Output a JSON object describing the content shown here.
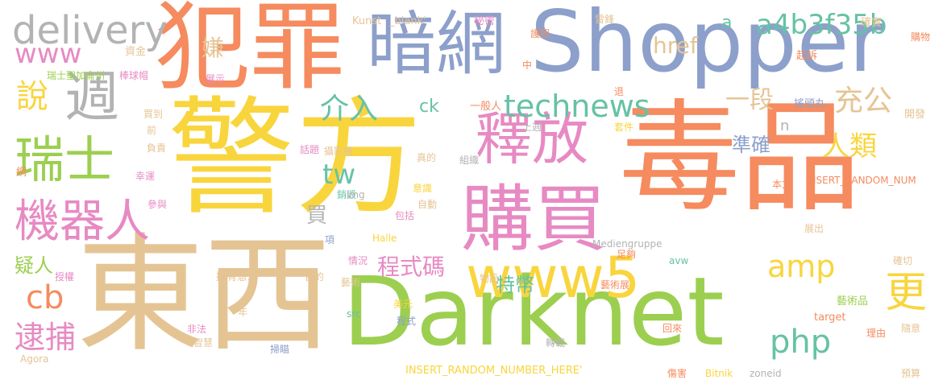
{
  "palette": {
    "orange": "#f58b5f",
    "yellow": "#f9d53d",
    "green": "#9ccf50",
    "blue": "#8da0cb",
    "tan": "#e5c494",
    "pink": "#e78ac3",
    "teal": "#66c2a5",
    "gray": "#b3b3b3"
  },
  "words": [
    {
      "text": "警方",
      "color": "#f9d53d"
    },
    {
      "text": "毒品",
      "color": "#f58b5f"
    },
    {
      "text": "東西",
      "color": "#e5c494"
    },
    {
      "text": "Darknet",
      "color": "#9ccf50"
    },
    {
      "text": "Shopper",
      "color": "#8da0cb"
    },
    {
      "text": "犯罪",
      "color": "#f58b5f"
    },
    {
      "text": "暗網",
      "color": "#8da0cb"
    },
    {
      "text": "購買",
      "color": "#e78ac3"
    },
    {
      "text": "釋放",
      "color": "#e78ac3"
    },
    {
      "text": "瑞士",
      "color": "#9ccf50"
    },
    {
      "text": "機器人",
      "color": "#e78ac3"
    },
    {
      "text": "週",
      "color": "#b3b3b3"
    },
    {
      "text": "delivery",
      "color": "#b3b3b3"
    },
    {
      "text": "www5",
      "color": "#f9d53d"
    },
    {
      "text": "更",
      "color": "#f9d53d"
    },
    {
      "text": "technews",
      "color": "#66c2a5"
    },
    {
      "text": "amp",
      "color": "#f9d53d"
    },
    {
      "text": "php",
      "color": "#66c2a5"
    },
    {
      "text": "www",
      "color": "#e78ac3"
    },
    {
      "text": "a4b3f35b",
      "color": "#66c2a5"
    },
    {
      "text": "說",
      "color": "#f9d53d"
    },
    {
      "text": "充公",
      "color": "#e5c494"
    },
    {
      "text": "人類",
      "color": "#f9d53d"
    },
    {
      "text": "cb",
      "color": "#f58b5f"
    },
    {
      "text": "逮捕",
      "color": "#e78ac3"
    },
    {
      "text": "介入",
      "color": "#66c2a5"
    },
    {
      "text": "tw",
      "color": "#66c2a5"
    },
    {
      "text": "href",
      "color": "#e5c494"
    },
    {
      "text": "一段",
      "color": "#e5c494"
    },
    {
      "text": "程式碼",
      "color": "#e78ac3"
    },
    {
      "text": "準確",
      "color": "#8da0cb"
    },
    {
      "text": "特幣",
      "color": "#66c2a5"
    },
    {
      "text": "疑人",
      "color": "#9ccf50"
    },
    {
      "text": "買",
      "color": "#b3b3b3"
    },
    {
      "text": "ck",
      "color": "#66c2a5"
    },
    {
      "text": "a",
      "color": "#66c2a5"
    },
    {
      "text": "n",
      "color": "#b3b3b3"
    },
    {
      "text": "嫌",
      "color": "#e5c494"
    },
    {
      "text": "Kunst",
      "color": "#e5c494"
    },
    {
      "text": "_blank'",
      "color": "#e5c494"
    },
    {
      "text": "秘密",
      "color": "#e78ac3"
    },
    {
      "text": "護照",
      "color": "#f58b5f"
    },
    {
      "text": "雷鋒",
      "color": "#e5c494"
    },
    {
      "text": "確實",
      "color": "#e5c494"
    },
    {
      "text": "購物",
      "color": "#f58b5f"
    },
    {
      "text": "資金",
      "color": "#e5c494"
    },
    {
      "text": "瑞士聖加侖州",
      "color": "#9ccf50"
    },
    {
      "text": "展示",
      "color": "#e78ac3"
    },
    {
      "text": "中",
      "color": "#f58b5f"
    },
    {
      "text": "起訴",
      "color": "#f58b5f"
    },
    {
      "text": "棒球帽",
      "color": "#e78ac3"
    },
    {
      "text": "買到",
      "color": "#e5c494"
    },
    {
      "text": "一般人",
      "color": "#f58b5f"
    },
    {
      "text": "退",
      "color": "#f58b5f"
    },
    {
      "text": "搖頭丸",
      "color": "#8da0cb"
    },
    {
      "text": "開發",
      "color": "#e5c494"
    },
    {
      "text": "前",
      "color": "#e5c494"
    },
    {
      "text": "上週",
      "color": "#b3b3b3"
    },
    {
      "text": "套件",
      "color": "#f9d53d"
    },
    {
      "text": "負責",
      "color": "#e5c494"
    },
    {
      "text": "話題",
      "color": "#e78ac3"
    },
    {
      "text": "攝影機",
      "color": "#e5c494"
    },
    {
      "text": "網",
      "color": "#f58b5f"
    },
    {
      "text": "真的",
      "color": "#e5c494"
    },
    {
      "text": "組織",
      "color": "#b3b3b3"
    },
    {
      "text": "INSERT_RANDOM_NUM",
      "color": "#f58b5f"
    },
    {
      "text": "幸運",
      "color": "#e78ac3"
    },
    {
      "text": "意識",
      "color": "#f9d53d"
    },
    {
      "text": "本文",
      "color": "#f58b5f"
    },
    {
      "text": "參與",
      "color": "#e78ac3"
    },
    {
      "text": "銷毀",
      "color": "#66c2a5"
    },
    {
      "text": "img",
      "color": "#b3b3b3"
    },
    {
      "text": "自動",
      "color": "#e5c494"
    },
    {
      "text": "包括",
      "color": "#e78ac3"
    },
    {
      "text": "展出",
      "color": "#e5c494"
    },
    {
      "text": "項",
      "color": "#8da0cb"
    },
    {
      "text": "Halle",
      "color": "#f9d53d"
    },
    {
      "text": "Mediengruppe",
      "color": "#b3b3b3"
    },
    {
      "text": "足夠",
      "color": "#f58b5f"
    },
    {
      "text": "avw",
      "color": "#66c2a5"
    },
    {
      "text": "確切",
      "color": "#e5c494"
    },
    {
      "text": "情況",
      "color": "#e78ac3"
    },
    {
      "text": "授權",
      "color": "#e78ac3"
    },
    {
      "text": "挺有意思",
      "color": "#e5c494"
    },
    {
      "text": "目的",
      "color": "#e5c494"
    },
    {
      "text": "藝術",
      "color": "#e5c494"
    },
    {
      "text": "物品",
      "color": "#e5c494"
    },
    {
      "text": "藝術展",
      "color": "#f58b5f"
    },
    {
      "text": "美元",
      "color": "#f9d53d"
    },
    {
      "text": "年",
      "color": "#e5c494"
    },
    {
      "text": "src",
      "color": "#66c2a5"
    },
    {
      "text": "程式",
      "color": "#8da0cb"
    },
    {
      "text": "藝術品",
      "color": "#9ccf50"
    },
    {
      "text": "target",
      "color": "#f58b5f"
    },
    {
      "text": "理由",
      "color": "#f58b5f"
    },
    {
      "text": "隨意",
      "color": "#e5c494"
    },
    {
      "text": "回來",
      "color": "#f58b5f"
    },
    {
      "text": "非法",
      "color": "#e78ac3"
    },
    {
      "text": "智慧",
      "color": "#e5c494"
    },
    {
      "text": "掃瞄",
      "color": "#8da0cb"
    },
    {
      "text": "轉載",
      "color": "#b3b3b3"
    },
    {
      "text": "Agora",
      "color": "#e5c494"
    },
    {
      "text": "INSERT_RANDOM_NUMBER_HERE'",
      "color": "#f9d53d"
    },
    {
      "text": "傷害",
      "color": "#f58b5f"
    },
    {
      "text": "Bitnik",
      "color": "#f9d53d"
    },
    {
      "text": "zoneid",
      "color": "#b3b3b3"
    },
    {
      "text": "預算",
      "color": "#e5c494"
    }
  ]
}
